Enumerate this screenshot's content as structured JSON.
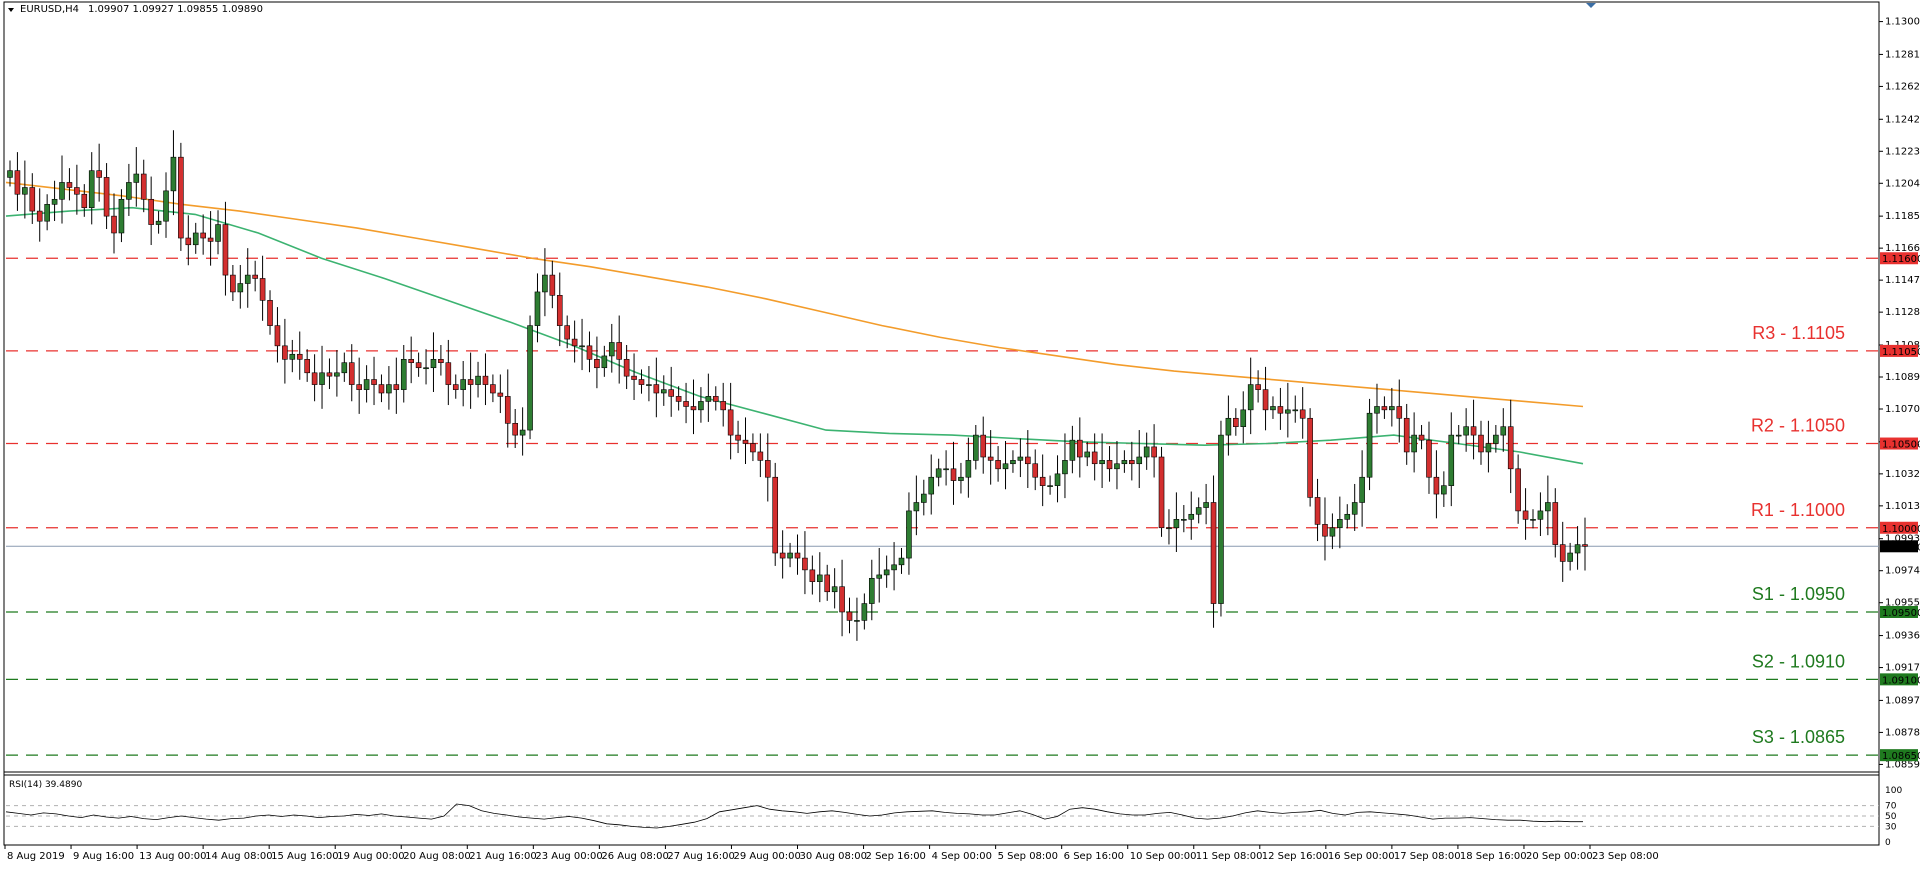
{
  "chart_data": {
    "type": "candlestick",
    "symbol_title": "EURUSD,H4",
    "ohlc_header": "1.09907 1.09927 1.09855 1.09890",
    "ylim": [
      1.0855,
      1.1305
    ],
    "price_ticks": [
      "1.13005",
      "1.12810",
      "1.12620",
      "1.12425",
      "1.12235",
      "1.12045",
      "1.11850",
      "1.11660",
      "1.11470",
      "1.11280",
      "1.11085",
      "1.10895",
      "1.10705",
      "1.10510",
      "1.10320",
      "1.10130",
      "1.09935",
      "1.09745",
      "1.09555",
      "1.09360",
      "1.09170",
      "1.08975",
      "1.08785",
      "1.08595"
    ],
    "x_labels": [
      "8 Aug 2019",
      "9 Aug 16:00",
      "13 Aug 00:00",
      "14 Aug 08:00",
      "15 Aug 16:00",
      "19 Aug 00:00",
      "20 Aug 08:00",
      "21 Aug 16:00",
      "23 Aug 00:00",
      "26 Aug 08:00",
      "27 Aug 16:00",
      "29 Aug 00:00",
      "30 Aug 08:00",
      "2 Sep 16:00",
      "4 Sep 00:00",
      "5 Sep 08:00",
      "6 Sep 16:00",
      "10 Sep 00:00",
      "11 Sep 08:00",
      "12 Sep 16:00",
      "16 Sep 00:00",
      "17 Sep 08:00",
      "18 Sep 16:00",
      "20 Sep 00:00",
      "23 Sep 08:00"
    ],
    "last_price": 1.0989,
    "last_price_label": "1.09890",
    "levels": [
      {
        "name": "R3 - 1.1105",
        "value": 1.1105,
        "tag": "1.11050",
        "color": "#e8312f"
      },
      {
        "name": "R2 - 1.1050",
        "value": 1.105,
        "tag": "1.10500",
        "color": "#e8312f"
      },
      {
        "name": "R1 - 1.1000",
        "value": 1.1,
        "tag": "1.10000",
        "color": "#e8312f"
      },
      {
        "name": "S1 - 1.0950",
        "value": 1.095,
        "tag": "1.09500",
        "color": "#1f7a1f"
      },
      {
        "name": "S2 - 1.0910",
        "value": 1.091,
        "tag": "1.09100",
        "color": "#1f7a1f"
      },
      {
        "name": "S3 - 1.0865",
        "value": 1.0865,
        "tag": "1.08650",
        "color": "#1f7a1f"
      }
    ],
    "extra_level": {
      "value": 1.116,
      "tag": "1.11600",
      "color": "#e8312f"
    },
    "closes": [
      1.1212,
      1.1198,
      1.1202,
      1.1188,
      1.1182,
      1.1192,
      1.1195,
      1.1205,
      1.1202,
      1.1198,
      1.119,
      1.1212,
      1.1208,
      1.1185,
      1.1175,
      1.1195,
      1.1205,
      1.121,
      1.1195,
      1.118,
      1.1182,
      1.12,
      1.122,
      1.1172,
      1.1168,
      1.1175,
      1.1172,
      1.117,
      1.118,
      1.115,
      1.114,
      1.1145,
      1.115,
      1.1148,
      1.1135,
      1.112,
      1.1108,
      1.11,
      1.1103,
      1.11,
      1.1092,
      1.1085,
      1.1092,
      1.109,
      1.1092,
      1.1098,
      1.1085,
      1.1082,
      1.1088,
      1.1085,
      1.108,
      1.1085,
      1.1082,
      1.11,
      1.1098,
      1.1095,
      1.1095,
      1.11,
      1.1098,
      1.1085,
      1.1082,
      1.1088,
      1.1085,
      1.109,
      1.1085,
      1.108,
      1.1078,
      1.1062,
      1.1055,
      1.1058,
      1.112,
      1.114,
      1.115,
      1.1138,
      1.112,
      1.1112,
      1.1108,
      1.1108,
      1.11,
      1.1095,
      1.1102,
      1.111,
      1.11,
      1.109,
      1.1088,
      1.1085,
      1.1085,
      1.108,
      1.1082,
      1.1078,
      1.1075,
      1.1072,
      1.107,
      1.1075,
      1.1078,
      1.1075,
      1.107,
      1.1055,
      1.1052,
      1.105,
      1.1045,
      1.104,
      1.103,
      1.0985,
      1.0982,
      1.0985,
      1.0982,
      1.0975,
      1.0968,
      1.0972,
      1.0962,
      1.0965,
      1.095,
      1.0945,
      1.0945,
      1.0955,
      1.097,
      1.0972,
      1.0975,
      1.0978,
      1.0982,
      1.101,
      1.1015,
      1.102,
      1.103,
      1.1035,
      1.1035,
      1.1028,
      1.103,
      1.104,
      1.1055,
      1.1042,
      1.104,
      1.1035,
      1.1038,
      1.104,
      1.1042,
      1.1038,
      1.103,
      1.1025,
      1.1025,
      1.1032,
      1.104,
      1.1052,
      1.1042,
      1.1045,
      1.1038,
      1.104,
      1.1035,
      1.1038,
      1.104,
      1.1038,
      1.1042,
      1.1048,
      1.1042,
      1.1,
      1.1,
      1.1005,
      1.1005,
      1.1008,
      1.1012,
      1.1015,
      1.0955,
      1.1055,
      1.1065,
      1.106,
      1.107,
      1.1085,
      1.1082,
      1.107,
      1.1072,
      1.1068,
      1.107,
      1.107,
      1.1065,
      1.1018,
      1.1002,
      1.0995,
      1.1,
      1.1005,
      1.1008,
      1.1015,
      1.103,
      1.1068,
      1.1072,
      1.107,
      1.1072,
      1.1065,
      1.1045,
      1.1055,
      1.1052,
      1.103,
      1.102,
      1.1025,
      1.1055,
      1.1055,
      1.106,
      1.1055,
      1.1045,
      1.105,
      1.1055,
      1.106,
      1.1035,
      1.101,
      1.1005,
      1.1005,
      1.101,
      1.1015,
      1.099,
      1.098,
      1.0985,
      1.099,
      1.0989
    ],
    "ma_green": [
      1.1185,
      1.1188,
      1.119,
      1.1186,
      1.1175,
      1.116,
      1.1148,
      1.1135,
      1.1122,
      1.1108,
      1.1092,
      1.1078,
      1.1068,
      1.1058,
      1.1056,
      1.1055,
      1.1053,
      1.1051,
      1.105,
      1.1049,
      1.105,
      1.1052,
      1.1055,
      1.105,
      1.1045,
      1.1038
    ],
    "ma_orange": [
      1.1205,
      1.1201,
      1.1197,
      1.1192,
      1.1188,
      1.1183,
      1.1178,
      1.1172,
      1.1166,
      1.116,
      1.1155,
      1.1149,
      1.1143,
      1.1136,
      1.1128,
      1.112,
      1.1113,
      1.1107,
      1.1102,
      1.1097,
      1.1093,
      1.109,
      1.1087,
      1.1084,
      1.1081,
      1.1078,
      1.1075,
      1.1072
    ],
    "rsi": {
      "label": "RSI(14) 39.4890",
      "ticks": [
        "100",
        "70",
        "50",
        "30",
        "0"
      ],
      "values": [
        58,
        55,
        52,
        56,
        54,
        50,
        47,
        52,
        48,
        46,
        49,
        45,
        43,
        47,
        50,
        47,
        44,
        42,
        45,
        46,
        50,
        52,
        49,
        52,
        50,
        47,
        49,
        50,
        53,
        51,
        54,
        50,
        48,
        46,
        44,
        50,
        73,
        70,
        60,
        55,
        52,
        48,
        46,
        44,
        47,
        49,
        46,
        41,
        35,
        33,
        30,
        28,
        27,
        30,
        34,
        38,
        45,
        58,
        62,
        66,
        70,
        63,
        60,
        58,
        55,
        58,
        60,
        57,
        53,
        50,
        52,
        56,
        58,
        59,
        60,
        57,
        55,
        54,
        52,
        52,
        56,
        60,
        53,
        44,
        49,
        63,
        66,
        63,
        58,
        54,
        52,
        52,
        55,
        57,
        52,
        46,
        44,
        46,
        50,
        56,
        60,
        57,
        55,
        57,
        58,
        61,
        55,
        52,
        57,
        58,
        56,
        54,
        52,
        48,
        44,
        46,
        46,
        47,
        45,
        43,
        42,
        42,
        40,
        39,
        40,
        39,
        39
      ]
    }
  }
}
